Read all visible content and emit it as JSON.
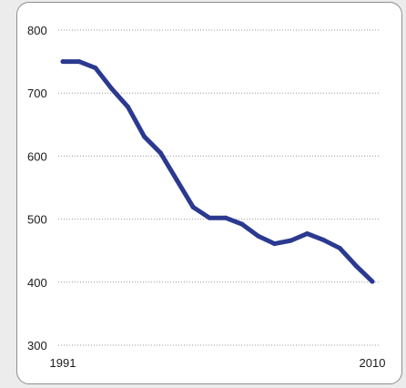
{
  "chart_data": {
    "type": "line",
    "title": "",
    "xlabel": "",
    "ylabel": "",
    "x": [
      1991,
      1992,
      1993,
      1994,
      1995,
      1996,
      1997,
      1998,
      1999,
      2000,
      2001,
      2002,
      2003,
      2004,
      2005,
      2006,
      2007,
      2008,
      2009,
      2010
    ],
    "series": [
      {
        "values": [
          750,
          750,
          740,
          707,
          678,
          631,
          605,
          562,
          519,
          502,
          502,
          492,
          473,
          461,
          466,
          477,
          467,
          454,
          426,
          401
        ]
      }
    ],
    "ylim": [
      300,
      800
    ],
    "yticks": [
      "300",
      "400",
      "500",
      "600",
      "700",
      "800"
    ],
    "xtick_labels": [
      "1991",
      "2010"
    ],
    "grid": "horizontal dotted",
    "line_color": "#2b3990",
    "background_color": "#ffffff"
  }
}
